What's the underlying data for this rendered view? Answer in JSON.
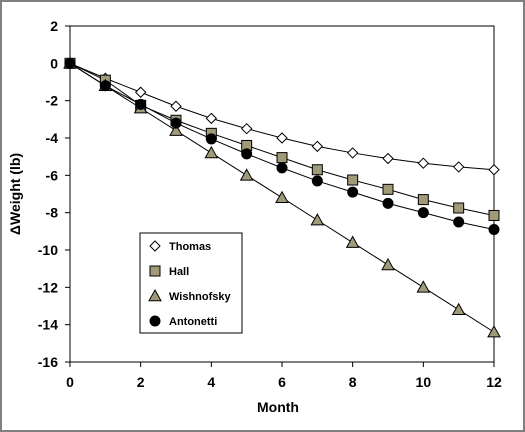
{
  "chart_data": {
    "type": "line",
    "title": "",
    "xlabel": "Month",
    "ylabel": "ΔWeight (lb)",
    "xlim": [
      0,
      12
    ],
    "ylim": [
      -16,
      2
    ],
    "xticks": [
      0,
      2,
      4,
      6,
      8,
      10,
      12
    ],
    "yticks": [
      2,
      0,
      -2,
      -4,
      -6,
      -8,
      -10,
      -12,
      -14,
      -16
    ],
    "grid": false,
    "legend_position": "bottom-left",
    "x": [
      0,
      1,
      2,
      3,
      4,
      5,
      6,
      7,
      8,
      9,
      10,
      11,
      12
    ],
    "series": [
      {
        "name": "Thomas",
        "marker": "diamond",
        "marker_fill": "#ffffff",
        "values": [
          0,
          -0.8,
          -1.55,
          -2.3,
          -2.95,
          -3.5,
          -4.0,
          -4.45,
          -4.8,
          -5.1,
          -5.35,
          -5.55,
          -5.7
        ]
      },
      {
        "name": "Hall",
        "marker": "square",
        "marker_fill": "#a09a78",
        "values": [
          0,
          -0.9,
          -2.25,
          -3.05,
          -3.75,
          -4.4,
          -5.05,
          -5.7,
          -6.25,
          -6.75,
          -7.3,
          -7.75,
          -8.15
        ]
      },
      {
        "name": "Wishnofsky",
        "marker": "triangle",
        "marker_fill": "#a09a78",
        "values": [
          0,
          -1.2,
          -2.4,
          -3.6,
          -4.8,
          -6.0,
          -7.2,
          -8.4,
          -9.6,
          -10.8,
          -12.0,
          -13.2,
          -14.4
        ]
      },
      {
        "name": "Antonetti",
        "marker": "circle",
        "marker_fill": "#000000",
        "values": [
          0,
          -1.2,
          -2.2,
          -3.2,
          -4.05,
          -4.85,
          -5.6,
          -6.3,
          -6.9,
          -7.5,
          -8.0,
          -8.5,
          -8.9
        ]
      }
    ]
  }
}
